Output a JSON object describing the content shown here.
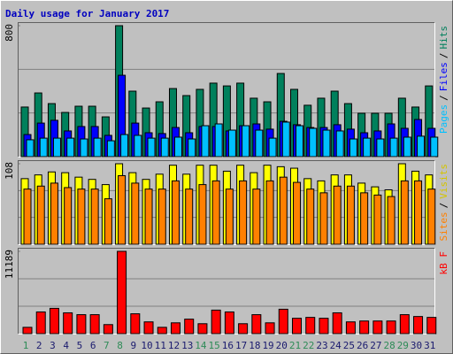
{
  "chart_data": {
    "type": "bar",
    "title": "Daily usage for January 2017",
    "categories": [
      "1",
      "2",
      "3",
      "4",
      "5",
      "6",
      "7",
      "8",
      "9",
      "10",
      "11",
      "12",
      "13",
      "14",
      "15",
      "16",
      "17",
      "18",
      "19",
      "20",
      "21",
      "22",
      "23",
      "24",
      "25",
      "26",
      "27",
      "28",
      "29",
      "30",
      "31"
    ],
    "weekend": [
      true,
      false,
      false,
      false,
      false,
      false,
      true,
      true,
      false,
      false,
      false,
      false,
      false,
      true,
      true,
      false,
      false,
      false,
      false,
      false,
      true,
      true,
      false,
      false,
      false,
      false,
      false,
      true,
      true,
      false,
      false
    ],
    "day_colors": {
      "weekday": "#1a1a6e",
      "weekend": "#2e8b57"
    },
    "legend_separator": "/",
    "panels": [
      {
        "ylim": [
          0,
          800
        ],
        "yticks": [
          800
        ],
        "grid": [
          266.67,
          533.33
        ],
        "series": [
          {
            "name": "Pages",
            "color": "#00c0ff",
            "values": [
              103,
              113,
              113,
              113,
              108,
              113,
              97,
              135,
              130,
              113,
              113,
              119,
              108,
              189,
              200,
              162,
              189,
              162,
              113,
              211,
              189,
              173,
              162,
              157,
              108,
              113,
              108,
              113,
              119,
              125,
              119
            ]
          },
          {
            "name": "Files",
            "color": "#0000ff",
            "values": [
              135,
              205,
              222,
              157,
              184,
              184,
              130,
              497,
              205,
              146,
              141,
              178,
              146,
              184,
              184,
              157,
              189,
              200,
              168,
              216,
              195,
              178,
              178,
              195,
              168,
              146,
              157,
              200,
              173,
              227,
              173
            ]
          },
          {
            "name": "Hits",
            "color": "#00805c",
            "values": [
              303,
              389,
              324,
              270,
              308,
              308,
              243,
              800,
              400,
              297,
              335,
              416,
              373,
              411,
              449,
              432,
              449,
              357,
              335,
              508,
              411,
              314,
              357,
              400,
              324,
              265,
              265,
              265,
              357,
              303,
              432
            ]
          }
        ]
      },
      {
        "ylim": [
          0,
          108
        ],
        "yticks": [
          108
        ],
        "grid": [
          36,
          72
        ],
        "series": [
          {
            "name": "Sites",
            "color": "#ff8000",
            "values": [
              74,
              78,
              82,
              76,
              74,
              74,
              61,
              92,
              82,
              74,
              74,
              85,
              74,
              80,
              85,
              74,
              85,
              74,
              85,
              90,
              83,
              74,
              69,
              78,
              78,
              69,
              66,
              64,
              85,
              85,
              74
            ]
          },
          {
            "name": "Visits",
            "color": "#ffff00",
            "values": [
              88,
              93,
              97,
              96,
              90,
              87,
              80,
              108,
              96,
              87,
              94,
              106,
              94,
              106,
              106,
              98,
              106,
              96,
              106,
              104,
              102,
              88,
              85,
              93,
              93,
              82,
              77,
              73,
              108,
              98,
              93
            ]
          }
        ]
      },
      {
        "ylim": [
          0,
          11189
        ],
        "yticks": [
          11189
        ],
        "grid": [
          3729.67,
          7459.33
        ],
        "series": [
          {
            "name": "kB F",
            "color": "#ff0000",
            "values": [
              860,
              2950,
              3440,
              2830,
              2580,
              2580,
              1230,
              11189,
              2700,
              1600,
              860,
              1470,
              1970,
              1350,
              3200,
              2950,
              1350,
              2580,
              1470,
              3320,
              2090,
              2210,
              2090,
              2830,
              1600,
              1720,
              1720,
              1720,
              2580,
              2330,
              2210
            ]
          }
        ]
      }
    ]
  }
}
